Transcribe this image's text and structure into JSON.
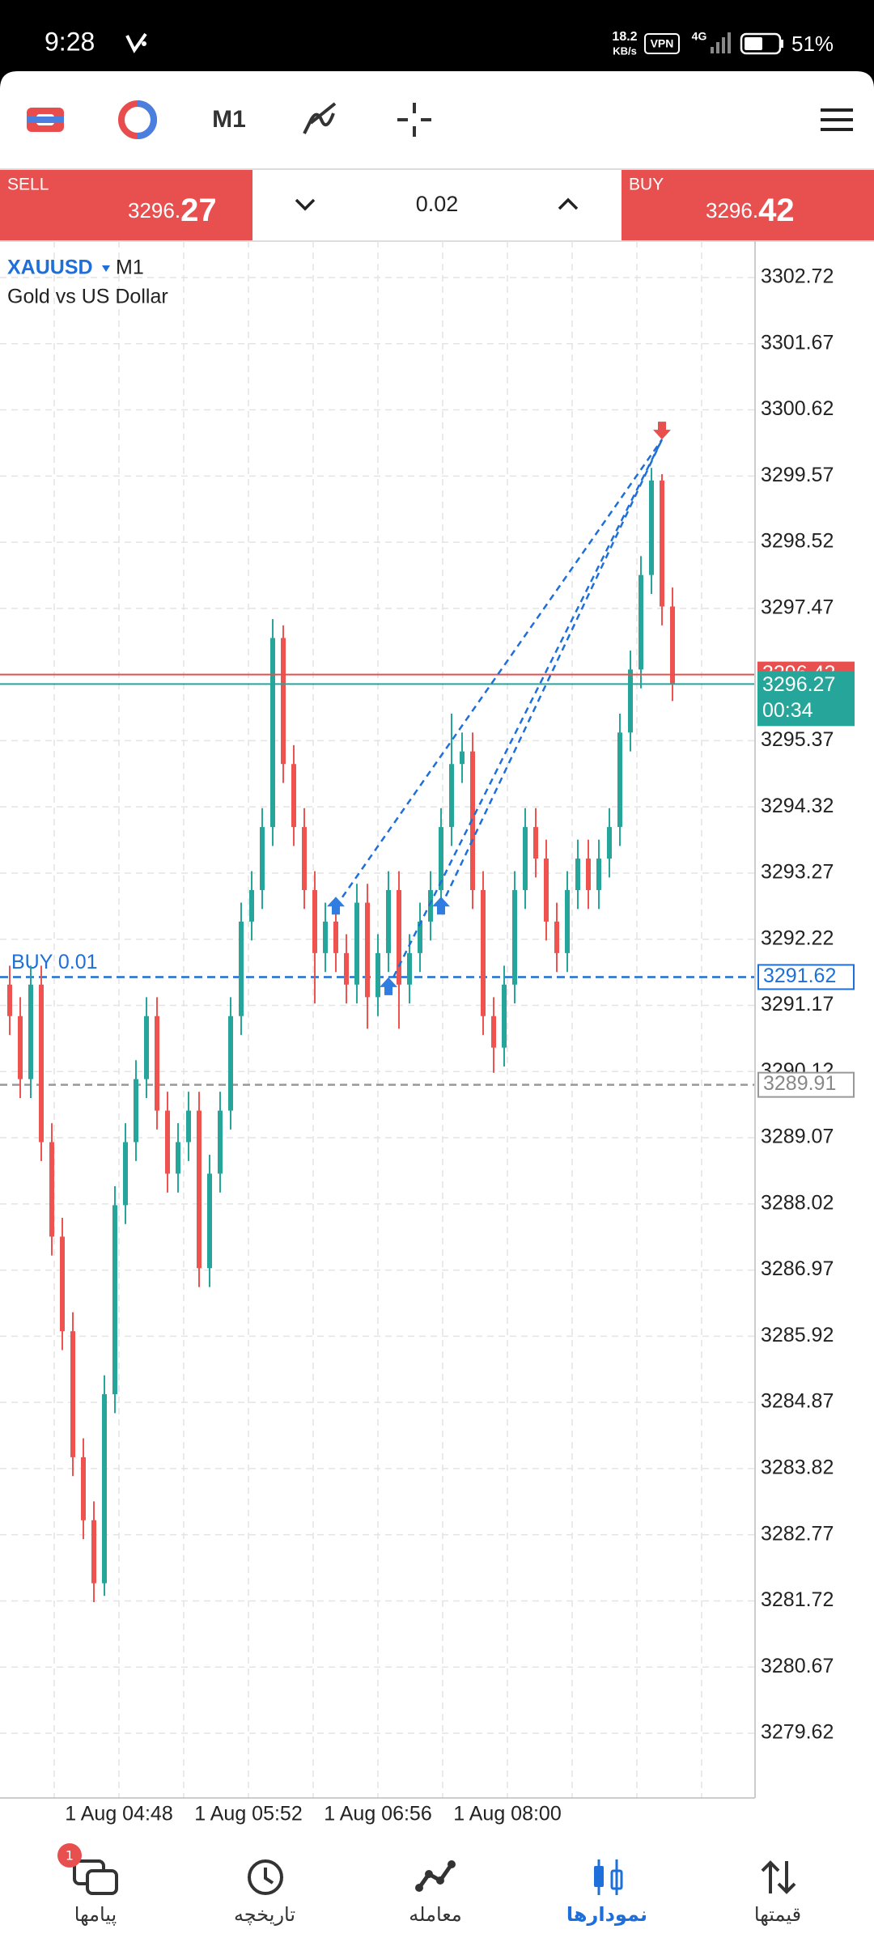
{
  "status_bar": {
    "time": "9:28",
    "speed": "18.2",
    "speed_unit": "KB/s",
    "vpn": "VPN",
    "network": "4G",
    "battery": "51%"
  },
  "toolbar": {
    "timeframe": "M1"
  },
  "trade_panel": {
    "sell_label": "SELL",
    "sell_price_prefix": "3296.",
    "sell_price_suffix": "27",
    "lot": "0.02",
    "buy_label": "BUY",
    "buy_price_prefix": "3296.",
    "buy_price_suffix": "42"
  },
  "chart": {
    "type": "candlestick",
    "symbol": "XAUUSD",
    "timeframe": "M1",
    "description": "Gold vs US Dollar",
    "ylim": [
      3279.62,
      3302.72
    ],
    "yticks": [
      3302.72,
      3301.67,
      3300.62,
      3299.57,
      3298.52,
      3297.47,
      3295.37,
      3294.32,
      3293.27,
      3292.22,
      3291.17,
      3290.12,
      3289.07,
      3288.02,
      3286.97,
      3285.92,
      3284.87,
      3283.82,
      3282.77,
      3281.72,
      3280.67,
      3279.62
    ],
    "time_labels": [
      "1 Aug 04:48",
      "1 Aug 05:52",
      "1 Aug 06:56",
      "1 Aug 08:00"
    ],
    "bull_color": "#26a69a",
    "bear_color": "#ef5350",
    "candles": [
      [
        3291.5,
        3291.8,
        3290.7,
        3291
      ],
      [
        3291,
        3291.3,
        3289.7,
        3290
      ],
      [
        3290,
        3291.8,
        3289.7,
        3291.5
      ],
      [
        3291.5,
        3291.8,
        3288.7,
        3289
      ],
      [
        3289,
        3289.3,
        3287.2,
        3287.5
      ],
      [
        3287.5,
        3287.8,
        3285.7,
        3286
      ],
      [
        3286,
        3286.3,
        3283.7,
        3284
      ],
      [
        3284,
        3284.3,
        3282.7,
        3283
      ],
      [
        3283,
        3283.3,
        3281.7,
        3282
      ],
      [
        3282,
        3285.3,
        3281.8,
        3285
      ],
      [
        3285,
        3288.3,
        3284.7,
        3288
      ],
      [
        3288,
        3289.3,
        3287.7,
        3289
      ],
      [
        3289,
        3290.3,
        3288.7,
        3290
      ],
      [
        3290,
        3291.3,
        3289.7,
        3291
      ],
      [
        3291,
        3291.3,
        3289.2,
        3289.5
      ],
      [
        3289.5,
        3289.8,
        3288.2,
        3288.5
      ],
      [
        3288.5,
        3289.3,
        3288.2,
        3289
      ],
      [
        3289,
        3289.8,
        3288.7,
        3289.5
      ],
      [
        3289.5,
        3289.8,
        3286.7,
        3287
      ],
      [
        3287,
        3288.8,
        3286.7,
        3288.5
      ],
      [
        3288.5,
        3289.8,
        3288.2,
        3289.5
      ],
      [
        3289.5,
        3291.3,
        3289.2,
        3291
      ],
      [
        3291,
        3292.8,
        3290.7,
        3292.5
      ],
      [
        3292.5,
        3293.3,
        3292.2,
        3293
      ],
      [
        3293,
        3294.3,
        3292.7,
        3294
      ],
      [
        3294,
        3297.3,
        3293.7,
        3297
      ],
      [
        3297,
        3297.2,
        3294.7,
        3295
      ],
      [
        3295,
        3295.3,
        3293.7,
        3294
      ],
      [
        3294,
        3294.3,
        3292.7,
        3293
      ],
      [
        3293,
        3293.3,
        3291.2,
        3292
      ],
      [
        3292,
        3292.8,
        3291.7,
        3292.5
      ],
      [
        3292.5,
        3292.8,
        3291.7,
        3292
      ],
      [
        3292,
        3292.3,
        3291.2,
        3291.5
      ],
      [
        3291.5,
        3293.1,
        3291.2,
        3292.8
      ],
      [
        3292.8,
        3293.1,
        3290.8,
        3291.3
      ],
      [
        3291.3,
        3292.3,
        3291,
        3292
      ],
      [
        3292,
        3293.3,
        3291.7,
        3293
      ],
      [
        3293,
        3293.3,
        3290.8,
        3291.5
      ],
      [
        3291.5,
        3292.3,
        3291.2,
        3292
      ],
      [
        3292,
        3292.8,
        3291.7,
        3292.5
      ],
      [
        3292.5,
        3293.3,
        3292.2,
        3293
      ],
      [
        3293,
        3294.3,
        3292.7,
        3294
      ],
      [
        3294,
        3295.8,
        3293.7,
        3295
      ],
      [
        3295,
        3295.5,
        3294.7,
        3295.2
      ],
      [
        3295.2,
        3295.5,
        3292.7,
        3293
      ],
      [
        3293,
        3293.3,
        3290.7,
        3291
      ],
      [
        3291,
        3291.3,
        3290.1,
        3290.5
      ],
      [
        3290.5,
        3291.8,
        3290.2,
        3291.5
      ],
      [
        3291.5,
        3293.3,
        3291.2,
        3293
      ],
      [
        3293,
        3294.3,
        3292.7,
        3294
      ],
      [
        3294,
        3294.3,
        3293.2,
        3293.5
      ],
      [
        3293.5,
        3293.8,
        3292.2,
        3292.5
      ],
      [
        3292.5,
        3292.8,
        3291.7,
        3292
      ],
      [
        3292,
        3293.3,
        3291.7,
        3293
      ],
      [
        3293,
        3293.8,
        3292.7,
        3293.5
      ],
      [
        3293.5,
        3293.8,
        3292.7,
        3293
      ],
      [
        3293,
        3293.8,
        3292.7,
        3293.5
      ],
      [
        3293.5,
        3294.3,
        3293.2,
        3294
      ],
      [
        3294,
        3295.8,
        3293.7,
        3295.5
      ],
      [
        3295.5,
        3296.8,
        3295.2,
        3296.5
      ],
      [
        3296.5,
        3298.3,
        3296.2,
        3298
      ],
      [
        3298,
        3299.7,
        3297.7,
        3299.5
      ],
      [
        3299.5,
        3299.6,
        3297.2,
        3297.5
      ],
      [
        3297.5,
        3297.8,
        3296,
        3296.27
      ]
    ],
    "bid": 3296.27,
    "ask": 3296.42,
    "countdown": "00:34",
    "position": {
      "label": "BUY 0.01",
      "price": 3291.62
    },
    "stop_price": 3289.91,
    "buy_deals": [
      {
        "candle": 31,
        "price": 3292.74
      },
      {
        "candle": 36,
        "price": 3291.46
      },
      {
        "candle": 41,
        "price": 3292.74
      }
    ],
    "sell_deal": {
      "candle": 62,
      "price": 3300.15
    }
  },
  "nav": {
    "messages": "پیامها",
    "messages_badge": "1",
    "history": "تاریخچه",
    "trade": "معامله",
    "charts": "نمودارها",
    "quotes": "قیمتها"
  }
}
